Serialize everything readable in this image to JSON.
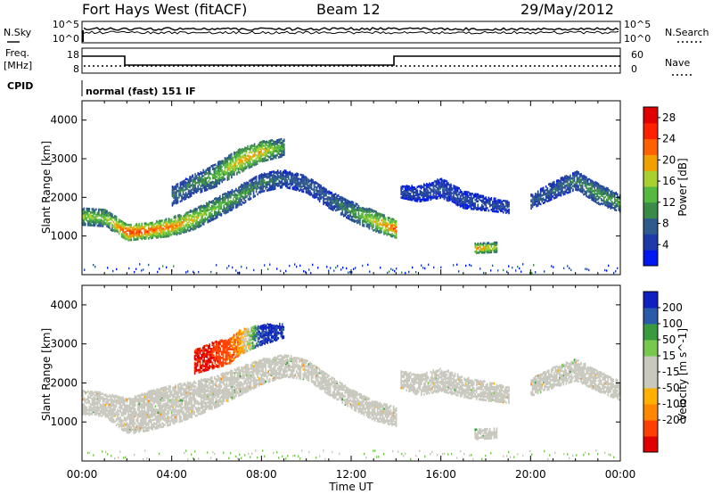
{
  "header": {
    "station": "Fort Hays West (fitACF)",
    "beam": "Beam 12",
    "date": "29/May/2012"
  },
  "noise_panel": {
    "left_label": "N.Sky",
    "left_ticks": [
      "10^5",
      "10^0"
    ],
    "right_ticks": [
      "10^5",
      "10^0"
    ],
    "right_label": "N.Search"
  },
  "freq_panel": {
    "label_top": "Freq.",
    "label_unit": "[MHz]",
    "left_ticks": [
      "18",
      "8"
    ],
    "right_ticks": [
      "60",
      "0"
    ],
    "right_label": "Nave",
    "cpid_label": "CPID",
    "cpid_text": "normal (fast) 151 IF"
  },
  "colors": {
    "power_scale": [
      "#0018f0",
      "#1e3aa8",
      "#2e5a8c",
      "#3a8a4a",
      "#55b840",
      "#a8d030",
      "#f0a000",
      "#ff6000",
      "#ff2000",
      "#e00000"
    ],
    "velocity_scale": [
      "#e00000",
      "#ff4000",
      "#ff8800",
      "#ffb000",
      "#c8c8be",
      "#c8c8be",
      "#78c850",
      "#3a9a40",
      "#2a5aa8",
      "#1020c0"
    ],
    "ground_scatter": "#c8c8be"
  },
  "chart_data": [
    {
      "type": "heatmap",
      "name": "power",
      "ylabel": "Slant Range [km]",
      "xlabel": "",
      "ylim": [
        0,
        4500
      ],
      "xlim": [
        0,
        24
      ],
      "yticks": [
        "1000",
        "2000",
        "3000",
        "4000"
      ],
      "xticks": [
        "00:00",
        "04:00",
        "08:00",
        "12:00",
        "16:00",
        "20:00",
        "00:00"
      ],
      "colorbar": {
        "label": "Power [dB]",
        "ticks": [
          "28",
          "24",
          "20",
          "16",
          "12",
          "8",
          "4"
        ],
        "range": [
          0,
          30
        ]
      },
      "features": [
        {
          "t": [
            0,
            1,
            2,
            3,
            4,
            5,
            6,
            7,
            8,
            9,
            10,
            11,
            12,
            13,
            14
          ],
          "range_km": [
            1520,
            1480,
            1100,
            1150,
            1250,
            1450,
            1750,
            2050,
            2400,
            2500,
            2350,
            1950,
            1650,
            1400,
            1180
          ],
          "width_km": [
            220,
            220,
            200,
            200,
            240,
            260,
            260,
            260,
            240,
            220,
            220,
            220,
            240,
            260,
            220
          ],
          "power_db": [
            16,
            16,
            26,
            24,
            22,
            18,
            14,
            12,
            10,
            8,
            8,
            8,
            12,
            18,
            24
          ]
        },
        {
          "t": [
            4,
            5,
            6,
            7,
            8,
            9
          ],
          "range_km": [
            2050,
            2350,
            2600,
            2950,
            3200,
            3300
          ],
          "width_km": [
            250,
            260,
            300,
            300,
            260,
            220
          ],
          "power_db": [
            10,
            10,
            14,
            20,
            20,
            12
          ]
        },
        {
          "t": [
            14.2,
            15,
            16,
            17,
            18,
            19
          ],
          "range_km": [
            2150,
            2100,
            2250,
            1950,
            1850,
            1750
          ],
          "width_km": [
            150,
            200,
            250,
            220,
            180,
            150
          ],
          "power_db": [
            6,
            6,
            6,
            6,
            6,
            6
          ]
        },
        {
          "t": [
            20,
            21,
            22,
            23,
            24
          ],
          "range_km": [
            1900,
            2200,
            2450,
            2100,
            1850
          ],
          "width_km": [
            180,
            220,
            240,
            260,
            220
          ],
          "power_db": [
            8,
            8,
            10,
            12,
            12
          ]
        },
        {
          "t": [
            17.5,
            18,
            18.5
          ],
          "range_km": [
            690,
            700,
            720
          ],
          "width_km": [
            120,
            120,
            120
          ],
          "power_db": [
            22,
            20,
            18
          ]
        }
      ]
    },
    {
      "type": "heatmap",
      "name": "velocity",
      "ylabel": "Slant Range [km]",
      "xlabel": "Time UT",
      "ylim": [
        0,
        4500
      ],
      "xlim": [
        0,
        24
      ],
      "yticks": [
        "1000",
        "2000",
        "3000",
        "4000"
      ],
      "xticks": [
        "00:00",
        "04:00",
        "08:00",
        "12:00",
        "16:00",
        "20:00",
        "00:00"
      ],
      "colorbar": {
        "label": "Velocity [m s^-1]",
        "ticks": [
          "200",
          "100",
          "50",
          "15",
          "-15",
          "-50",
          "-100",
          "-200"
        ],
        "range": [
          -250,
          250
        ]
      },
      "features": [
        {
          "t": [
            0,
            1,
            2,
            3,
            4,
            5,
            6,
            7,
            8,
            9,
            10,
            11,
            12,
            13,
            14
          ],
          "range_km": [
            1500,
            1450,
            1150,
            1300,
            1450,
            1600,
            1800,
            2050,
            2300,
            2450,
            2350,
            1950,
            1600,
            1300,
            1150
          ],
          "width_km": [
            300,
            300,
            450,
            500,
            500,
            450,
            400,
            360,
            320,
            280,
            250,
            250,
            250,
            250,
            250
          ],
          "velocity_ms": [
            0,
            0,
            0,
            0,
            0,
            0,
            0,
            0,
            0,
            0,
            0,
            0,
            20,
            30,
            0
          ],
          "ground_scatter": true
        },
        {
          "t": [
            5,
            5.5,
            6,
            6.5,
            7,
            7.5,
            8,
            8.5,
            9
          ],
          "range_km": [
            2550,
            2650,
            2750,
            2800,
            3050,
            3150,
            3250,
            3300,
            3350
          ],
          "width_km": [
            300,
            320,
            340,
            320,
            320,
            280,
            260,
            220,
            180
          ],
          "velocity_ms": [
            -220,
            -220,
            -180,
            -120,
            -60,
            20,
            220,
            220,
            180
          ],
          "ground_scatter": false
        },
        {
          "t": [
            14.2,
            15,
            16,
            17,
            18,
            19
          ],
          "range_km": [
            2100,
            1950,
            2100,
            1900,
            1800,
            1700
          ],
          "width_km": [
            220,
            260,
            300,
            260,
            240,
            200
          ],
          "velocity_ms": [
            0,
            0,
            0,
            0,
            0,
            0
          ],
          "ground_scatter": true
        },
        {
          "t": [
            20,
            21,
            22,
            23,
            24
          ],
          "range_km": [
            1900,
            2150,
            2350,
            2050,
            1800
          ],
          "width_km": [
            220,
            260,
            280,
            260,
            240
          ],
          "velocity_ms": [
            0,
            0,
            0,
            0,
            0
          ],
          "ground_scatter": true
        },
        {
          "t": [
            17.5,
            18,
            18.5
          ],
          "range_km": [
            690,
            700,
            720
          ],
          "width_km": [
            120,
            120,
            120
          ],
          "velocity_ms": [
            0,
            0,
            0
          ],
          "ground_scatter": true
        }
      ]
    }
  ]
}
